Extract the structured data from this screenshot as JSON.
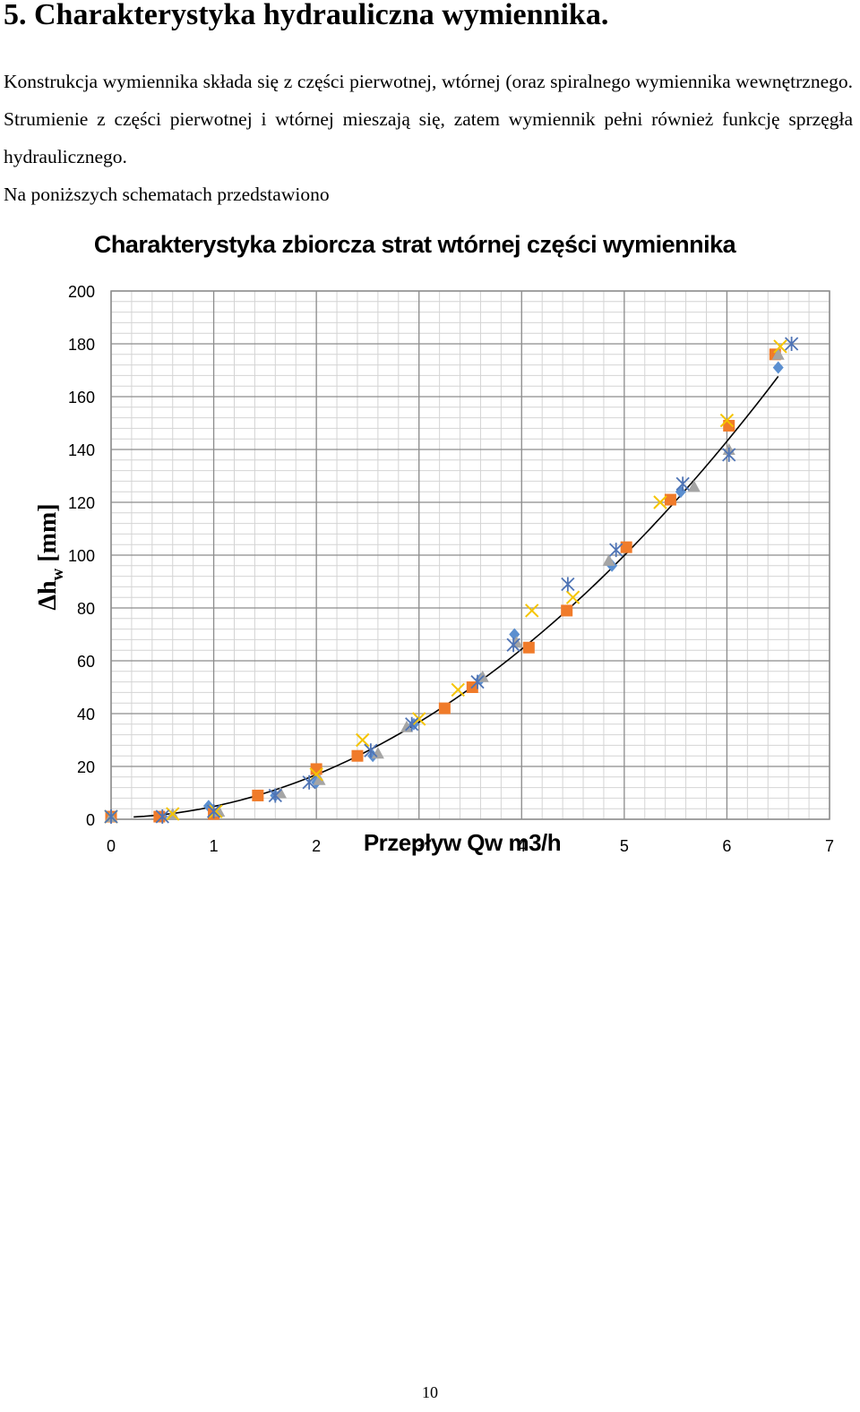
{
  "document": {
    "heading": "5. Charakterystyka hydrauliczna wymiennika.",
    "paragraph1": "Konstrukcja wymiennika składa się z części pierwotnej, wtórnej (oraz spiralnego wymiennika wewnętrznego. Strumienie z części pierwotnej i wtórnej mieszają się, zatem wymiennik pełni również funkcję sprzęgła hydraulicznego.",
    "paragraph2": "Na poniższych schematach przedstawiono",
    "page_number": "10"
  },
  "chart_data": {
    "type": "scatter",
    "title": "Charakterystyka zbiorcza strat wtórnej części wymiennika",
    "xlabel": "Przepływ Qw m3/h",
    "ylabel_main": "Δh",
    "ylabel_sub": "w",
    "ylabel_unit": "[mm]",
    "xlim": [
      0,
      7
    ],
    "ylim": [
      0,
      200
    ],
    "x_ticks": [
      0,
      1,
      2,
      3,
      4,
      5,
      6,
      7
    ],
    "y_ticks": [
      0,
      20,
      40,
      60,
      80,
      100,
      120,
      140,
      160,
      180,
      200
    ],
    "grid": true,
    "minor_grid": true,
    "series": [
      {
        "marker": "diamond",
        "color": "#5b8fd0",
        "points": [
          [
            0,
            1
          ],
          [
            0.5,
            1
          ],
          [
            0.95,
            5
          ],
          [
            1.6,
            9
          ],
          [
            2.0,
            14
          ],
          [
            2.55,
            24
          ],
          [
            2.95,
            36
          ],
          [
            3.6,
            53
          ],
          [
            3.93,
            70
          ],
          [
            4.88,
            96
          ],
          [
            5.55,
            124
          ],
          [
            6.5,
            171
          ]
        ]
      },
      {
        "marker": "square",
        "color": "#f07b2a",
        "points": [
          [
            0,
            1
          ],
          [
            0.47,
            1
          ],
          [
            1.0,
            2
          ],
          [
            1.43,
            9
          ],
          [
            2.0,
            19
          ],
          [
            2.4,
            24
          ],
          [
            3.25,
            42
          ],
          [
            3.52,
            50
          ],
          [
            4.07,
            65
          ],
          [
            4.44,
            79
          ],
          [
            5.02,
            103
          ],
          [
            5.45,
            121
          ],
          [
            6.02,
            149
          ],
          [
            6.47,
            176
          ]
        ]
      },
      {
        "marker": "triangle",
        "color": "#a5a5a5",
        "points": [
          [
            0,
            1
          ],
          [
            0.6,
            2
          ],
          [
            1.05,
            3
          ],
          [
            1.65,
            10
          ],
          [
            2.03,
            15
          ],
          [
            2.6,
            25
          ],
          [
            2.88,
            35
          ],
          [
            3.62,
            54
          ],
          [
            3.95,
            67
          ],
          [
            4.85,
            98
          ],
          [
            5.68,
            126
          ],
          [
            6.02,
            140
          ],
          [
            6.5,
            176
          ]
        ]
      },
      {
        "marker": "x",
        "color": "#f5c400",
        "points": [
          [
            0,
            1
          ],
          [
            0.6,
            2
          ],
          [
            1.02,
            3
          ],
          [
            2.0,
            17
          ],
          [
            2.45,
            30
          ],
          [
            3.0,
            38
          ],
          [
            3.38,
            49
          ],
          [
            4.1,
            79
          ],
          [
            4.5,
            84
          ],
          [
            5.35,
            120
          ],
          [
            6.0,
            151
          ],
          [
            6.52,
            179
          ]
        ]
      },
      {
        "marker": "star",
        "color": "#4f74b5",
        "points": [
          [
            0,
            1
          ],
          [
            0.5,
            1
          ],
          [
            1.0,
            3
          ],
          [
            1.6,
            9
          ],
          [
            1.93,
            14
          ],
          [
            2.53,
            26
          ],
          [
            2.93,
            36
          ],
          [
            3.57,
            52
          ],
          [
            3.92,
            66
          ],
          [
            4.45,
            89
          ],
          [
            4.92,
            102
          ],
          [
            5.57,
            127
          ],
          [
            6.02,
            138
          ],
          [
            6.63,
            180
          ]
        ]
      }
    ],
    "trendline": {
      "type": "quadratic",
      "coefficients": [
        3.9,
        0.35,
        0.6
      ]
    }
  }
}
